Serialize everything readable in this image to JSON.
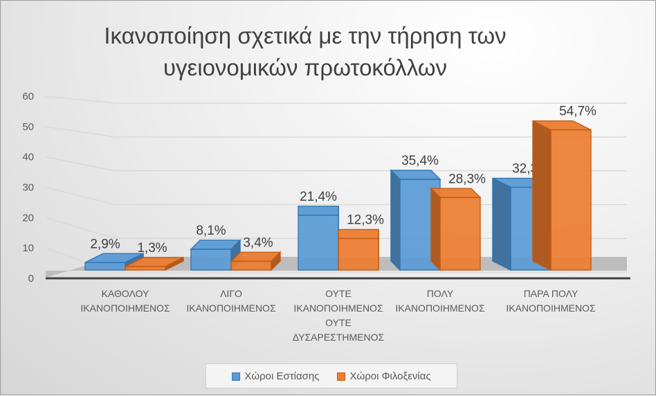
{
  "chart_data": {
    "type": "bar",
    "title": "Ικανοποίηση σχετικά με την τήρηση των υγειονομικών πρωτοκόλλων",
    "categories": [
      [
        "ΚΑΘΟΛΟΥ",
        "ΙΚΑΝΟΠΟΙΗΜΕΝΟΣ"
      ],
      [
        "ΛΙΓΟ",
        "ΙΚΑΝΟΠΟΙΗΜΕΝΟΣ"
      ],
      [
        "ΟΥΤΕ",
        "ΙΚΑΝΟΠΟΙΗΜΕΝΟΣ",
        "ΟΥΤΕ",
        "ΔΥΣΑΡΕΣΤΗΜΕΝΟΣ"
      ],
      [
        "ΠΟΛΥ",
        "ΙΚΑΝΟΠΟΙΗΜΕΝΟΣ"
      ],
      [
        "ΠΑΡΑ ΠΟΛΥ",
        "ΙΚΑΝΟΠΟΙΗΜΕΝΟΣ"
      ]
    ],
    "series": [
      {
        "name": "Χώροι Εστίασης",
        "color": "#5b9bd5",
        "values": [
          2.9,
          8.1,
          21.4,
          35.4,
          32.3
        ],
        "labels": [
          "2,9%",
          "8,1%",
          "21,4%",
          "35,4%",
          "32,3%"
        ]
      },
      {
        "name": "Χώροι Φιλοξενίας",
        "color": "#ed7d31",
        "values": [
          1.3,
          3.4,
          12.3,
          28.3,
          54.7
        ],
        "labels": [
          "1,3%",
          "3,4%",
          "12,3%",
          "28,3%",
          "54,7%"
        ]
      }
    ],
    "yticks": [
      0,
      10,
      20,
      30,
      40,
      50,
      60
    ],
    "ylim": [
      0,
      60
    ],
    "xlabel": "",
    "ylabel": "",
    "legend": "bottom",
    "grid": true
  }
}
